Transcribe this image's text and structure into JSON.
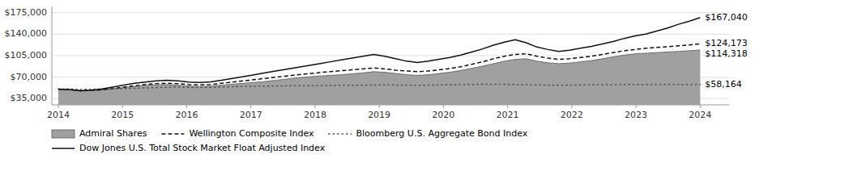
{
  "chart_data": {
    "type": "line",
    "x": [
      2014,
      2014.169492,
      2014.338983,
      2014.508475,
      2014.677966,
      2014.847458,
      2015.016949,
      2015.186441,
      2015.355932,
      2015.525424,
      2015.694915,
      2015.864407,
      2016.033898,
      2016.20339,
      2016.372881,
      2016.542373,
      2016.711864,
      2016.881356,
      2017.050847,
      2017.220339,
      2017.389831,
      2017.559322,
      2017.728814,
      2017.898305,
      2018.067797,
      2018.237288,
      2018.40678,
      2018.576271,
      2018.745763,
      2018.915254,
      2019.084746,
      2019.254237,
      2019.423729,
      2019.59322,
      2019.762712,
      2019.932203,
      2020.101695,
      2020.271186,
      2020.440678,
      2020.610169,
      2020.779661,
      2020.949153,
      2021.118644,
      2021.288136,
      2021.457627,
      2021.627119,
      2021.79661,
      2021.966102,
      2022.135593,
      2022.305085,
      2022.474576,
      2022.644068,
      2022.813559,
      2022.983051,
      2023.152542,
      2023.322034,
      2023.491525,
      2023.661017,
      2023.830508,
      2024
    ],
    "xlim": [
      2013.9,
      2024.45
    ],
    "xticks": [
      2014,
      2015,
      2016,
      2017,
      2018,
      2019,
      2020,
      2021,
      2022,
      2023,
      2024
    ],
    "ylim": [
      25000,
      185000
    ],
    "yticks": [
      {
        "value": 35000,
        "label": "$35,000"
      },
      {
        "value": 70000,
        "label": "$70,000"
      },
      {
        "value": 105000,
        "label": "$105,000"
      },
      {
        "value": 140000,
        "label": "$140,000"
      },
      {
        "value": 175000,
        "label": "$175,000"
      }
    ],
    "grid": true,
    "legend": "bottom",
    "series": [
      {
        "name": "Admiral Shares",
        "type": "area",
        "color": "#a0a0a0",
        "values": [
          50000,
          49500,
          47500,
          48000,
          49000,
          51000,
          53000,
          55000,
          56500,
          57500,
          58000,
          57000,
          55500,
          55000,
          55500,
          57000,
          58500,
          60000,
          61500,
          63000,
          65000,
          67000,
          69000,
          70500,
          72000,
          73000,
          74000,
          75500,
          77000,
          79000,
          78000,
          76000,
          74000,
          73000,
          74000,
          76000,
          78000,
          81000,
          84500,
          88000,
          92000,
          96000,
          99000,
          100000,
          96000,
          93500,
          92000,
          93000,
          95000,
          97000,
          100000,
          103000,
          106000,
          108000,
          109000,
          110000,
          111000,
          112000,
          113000,
          114318
        ]
      },
      {
        "name": "Wellington Composite Index",
        "type": "line",
        "line_style": "dashed",
        "color": "#111111",
        "values": [
          50500,
          50000,
          48000,
          48500,
          49500,
          51500,
          54000,
          56000,
          58000,
          59500,
          60000,
          59500,
          58000,
          57500,
          58000,
          60000,
          62000,
          64000,
          66000,
          68000,
          70000,
          72000,
          74000,
          75500,
          77500,
          79000,
          80500,
          82000,
          83500,
          85000,
          83500,
          81500,
          80000,
          79000,
          80000,
          82000,
          84000,
          87000,
          91000,
          95000,
          100000,
          104000,
          107000,
          108000,
          104000,
          101000,
          99000,
          100000,
          102000,
          104000,
          107000,
          110000,
          113000,
          115000,
          117000,
          118500,
          119500,
          121000,
          122500,
          124173
        ]
      },
      {
        "name": "Bloomberg U.S. Aggregate Bond Index",
        "type": "line",
        "line_style": "dotted",
        "color": "#555555",
        "values": [
          50500,
          51000,
          50000,
          50200,
          50500,
          51000,
          51500,
          52000,
          52500,
          53000,
          53500,
          53800,
          53500,
          53200,
          53500,
          54000,
          54500,
          55000,
          55300,
          55500,
          55700,
          56000,
          56200,
          56300,
          56500,
          56600,
          56700,
          56800,
          57000,
          57200,
          57500,
          57300,
          57000,
          56800,
          57000,
          57500,
          57800,
          58000,
          58200,
          58400,
          58500,
          58300,
          58000,
          57700,
          57400,
          57200,
          57000,
          57100,
          57300,
          57600,
          57800,
          57900,
          58000,
          58050,
          58100,
          58120,
          58130,
          58140,
          58150,
          58164
        ]
      },
      {
        "name": "Dow Jones U.S. Total Stock Market Float Adjusted Index",
        "type": "line",
        "line_style": "solid",
        "color": "#111111",
        "values": [
          50500,
          50000,
          48000,
          49000,
          51000,
          54000,
          57000,
          60000,
          62000,
          64000,
          65000,
          64000,
          62000,
          61500,
          62500,
          65000,
          68000,
          71000,
          74000,
          77000,
          80000,
          83000,
          86000,
          89000,
          92000,
          95000,
          98000,
          101000,
          104000,
          107000,
          104000,
          100000,
          96000,
          94000,
          96000,
          99000,
          102000,
          106000,
          111000,
          116000,
          122000,
          127000,
          131000,
          126000,
          119000,
          115000,
          112000,
          114000,
          117000,
          120000,
          124000,
          128000,
          133000,
          137000,
          140000,
          145000,
          150000,
          156000,
          161000,
          167040
        ]
      }
    ],
    "annotations": [
      {
        "text": "$167,040",
        "x": 2024,
        "y": 167040
      },
      {
        "text": "$124,173",
        "x": 2024,
        "y": 124173
      },
      {
        "text": "$114,318",
        "x": 2024,
        "y": 114318
      },
      {
        "text": "$58,164",
        "x": 2024,
        "y": 58164
      }
    ]
  }
}
